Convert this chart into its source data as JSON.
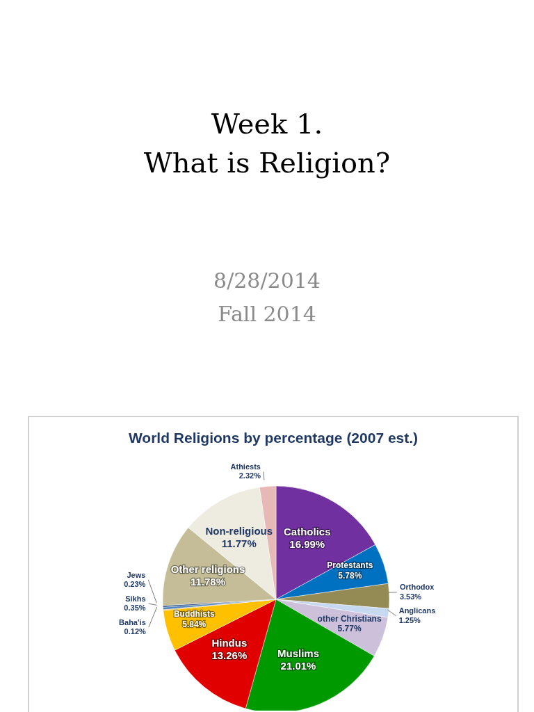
{
  "chart_data": {
    "type": "pie",
    "title": "World Religions by percentage (2007 est.)",
    "annotations": [
      "Week 1.",
      "What is Religion?",
      "8/28/2014",
      "Fall 2014"
    ],
    "categories": [
      "Catholics",
      "Protestants",
      "Orthodox",
      "Anglicans",
      "other Christians",
      "Muslims",
      "Hindus",
      "Buddhists",
      "Baha'is",
      "Sikhs",
      "Jews",
      "Other religions",
      "Non-religious",
      "Athiests"
    ],
    "values": [
      16.99,
      5.78,
      3.53,
      1.25,
      5.77,
      21.01,
      13.26,
      5.84,
      0.12,
      0.35,
      0.23,
      11.78,
      11.77,
      2.32
    ],
    "value_labels": [
      "16.99%",
      "5.78%",
      "3.53%",
      "1.25%",
      "5.77%",
      "21.01%",
      "13.26%",
      "5.84%",
      "0.12%",
      "0.35%",
      "0.23%",
      "11.78%",
      "11.77%",
      "2.32%"
    ],
    "colors": [
      "#7030a0",
      "#0070c0",
      "#948a54",
      "#c6d9f1",
      "#ccc0da",
      "#009900",
      "#e00000",
      "#ffc000",
      "#e8b000",
      "#4f81bd",
      "#1f497d",
      "#c4bd97",
      "#eeece1",
      "#e6b9b8"
    ],
    "legend": false
  }
}
